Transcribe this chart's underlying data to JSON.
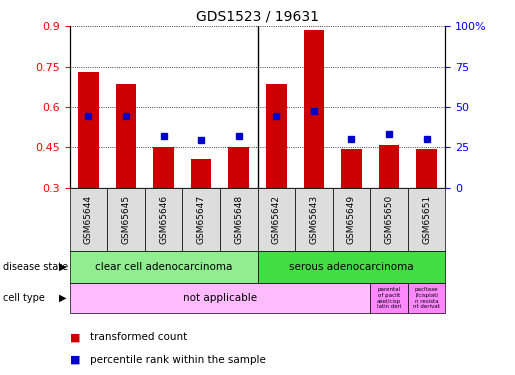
{
  "title": "GDS1523 / 19631",
  "samples": [
    "GSM65644",
    "GSM65645",
    "GSM65646",
    "GSM65647",
    "GSM65648",
    "GSM65642",
    "GSM65643",
    "GSM65649",
    "GSM65650",
    "GSM65651"
  ],
  "transformed_count": [
    0.73,
    0.685,
    0.45,
    0.405,
    0.45,
    0.685,
    0.885,
    0.445,
    0.46,
    0.445
  ],
  "percentile_rank": [
    0.565,
    0.565,
    0.49,
    0.475,
    0.49,
    0.565,
    0.585,
    0.48,
    0.5,
    0.48
  ],
  "ylim": [
    0.3,
    0.9
  ],
  "yticks": [
    0.3,
    0.45,
    0.6,
    0.75,
    0.9
  ],
  "ytick_labels": [
    "0.3",
    "0.45",
    "0.6",
    "0.75",
    "0.9"
  ],
  "y2ticks": [
    0,
    25,
    50,
    75,
    100
  ],
  "y2tick_labels": [
    "0",
    "25",
    "50",
    "75",
    "100%"
  ],
  "bar_color": "#cc0000",
  "dot_color": "#0000cc",
  "bar_bottom": 0.3,
  "cc_color": "#90ee90",
  "sa_color": "#44dd44",
  "cell_main_color": "#ffbbff",
  "cell_extra_color": "#ff88ff",
  "disease_state_labels": [
    "clear cell adenocarcinoma",
    "serous adenocarcinoma"
  ],
  "cell_type_main_text": "not applicable",
  "cell_type_extra1": "parental\nof paclit\naxel/cisp\nlatin deri",
  "cell_type_extra2": "pacltaxe\nl/cisplati\nn resista\nnt derivat",
  "disease_state_row_label": "disease state",
  "cell_type_row_label": "cell type",
  "legend_bar_label": "transformed count",
  "legend_dot_label": "percentile rank within the sample",
  "n_samples": 10,
  "n_cc": 5,
  "n_sa": 5,
  "n_cell_main": 8,
  "separator_idx": 4
}
